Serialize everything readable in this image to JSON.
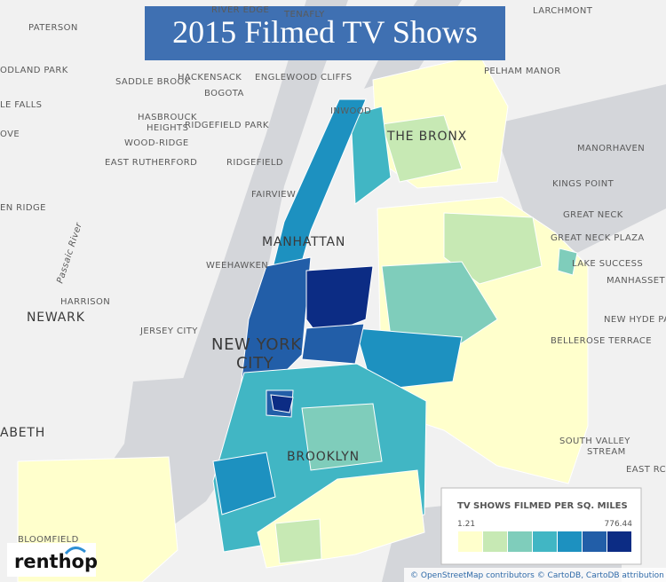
{
  "title": "2015  Filmed  TV Shows",
  "map": {
    "labels": [
      "PATERSON",
      "SADDLE BROOK",
      "ODLAND PARK",
      "HACKENSACK",
      "BOGOTA",
      "ENGLEWOOD CLIFFS",
      "LE FALLS",
      "HASBROUCK",
      "HEIGHTS",
      "RIDGEFIELD PARK",
      "OVE",
      "WOOD-RIDGE",
      "EAST RUTHERFORD",
      "RIDGEFIELD",
      "FAIRVIEW",
      "EN RIDGE",
      "INWOOD",
      "THE BRONX",
      "MANORHAVEN",
      "KINGS POINT",
      "GREAT NECK",
      "GREAT NECK PLAZA",
      "LAKE SUCCESS",
      "MANHASSET HILLS",
      "NEW HYDE PARK",
      "BELLEROSE TERRACE",
      "SOUTH VALLEY",
      "STREAM",
      "EAST RC",
      "MANHATTAN",
      "WEEHAWKEN",
      "HARRISON",
      "NEWARK",
      "JERSEY CITY",
      "NEW YORK",
      "CITY",
      "Passaic River",
      "BROOKLYN",
      "ABETH",
      "BLOOMFIELD",
      "LARCHMONT",
      "PELHAM MANOR",
      "TENAFLY",
      "RIVER EDGE"
    ]
  },
  "legend": {
    "title": "TV SHOWS FILMED PER SQ. MILES",
    "min": 1.21,
    "max": 776.44,
    "colors": [
      "#ffffcc",
      "#c7e9b4",
      "#7fcdbb",
      "#41b6c4",
      "#1d91c0",
      "#225ea8",
      "#0c2c84"
    ]
  },
  "logo": "renthop",
  "attribution": "© OpenStreetMap contributors © CartoDB, CartoDB attribution"
}
